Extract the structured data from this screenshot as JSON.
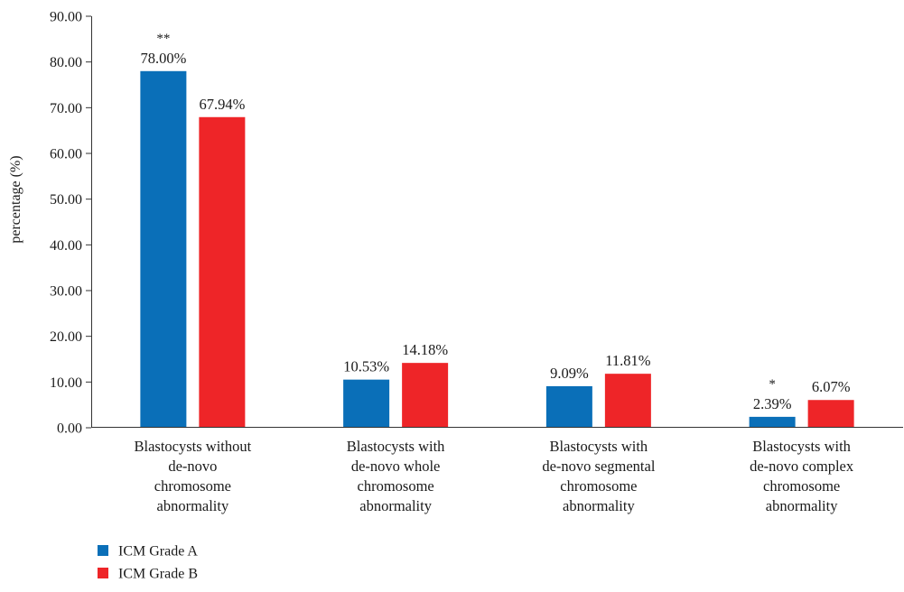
{
  "chart_data": {
    "type": "bar",
    "ylabel": "percentage (%)",
    "ylim": [
      0,
      90
    ],
    "ytick_step": 10,
    "ytick_labels": [
      "0.00",
      "10.00",
      "20.00",
      "30.00",
      "40.00",
      "50.00",
      "60.00",
      "70.00",
      "80.00",
      "90.00"
    ],
    "categories": [
      [
        "Blastocysts without",
        "de-novo",
        "chromosome",
        "abnormality"
      ],
      [
        "Blastocysts with",
        "de-novo whole",
        "chromosome",
        "abnormality"
      ],
      [
        "Blastocysts with",
        "de-novo segmental",
        "chromosome",
        "abnormality"
      ],
      [
        "Blastocysts with",
        "de-novo complex",
        "chromosome",
        "abnormality"
      ]
    ],
    "series": [
      {
        "name": "ICM Grade A",
        "color": "#0a6fb8",
        "values": [
          78.0,
          10.53,
          9.09,
          2.39
        ],
        "labels": [
          "78.00%",
          "10.53%",
          "9.09%",
          "2.39%"
        ],
        "significance": [
          "**",
          "",
          "",
          "*"
        ]
      },
      {
        "name": "ICM Grade B",
        "color": "#ee2528",
        "values": [
          67.94,
          14.18,
          11.81,
          6.07
        ],
        "labels": [
          "67.94%",
          "14.18%",
          "11.81%",
          "6.07%"
        ],
        "significance": [
          "",
          "",
          "",
          ""
        ]
      }
    ],
    "grid": false,
    "legend_position": "bottom-left"
  }
}
